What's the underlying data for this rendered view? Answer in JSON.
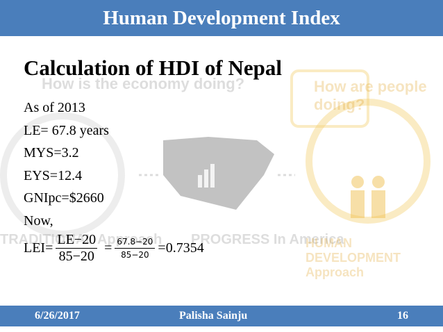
{
  "header": {
    "title": "Human Development Index"
  },
  "background": {
    "economy_question": "How is the economy doing?",
    "people_question": "How are people doing?",
    "traditional_approach": "TRADITIONAL Approach",
    "progress_in_america": "PROGRESS In America",
    "human_development_approach": "HUMAN DEVELOPMENT Approach"
  },
  "content": {
    "heading": "Calculation of HDI of Nepal",
    "lines": [
      "As of 2013",
      "LE= 67.8 years",
      "MYS=3.2",
      "EYS=12.4",
      "GNIpc=$2660",
      "Now,"
    ],
    "formula": {
      "label": "LEI=",
      "fraction1": {
        "numerator": "LE−20",
        "denominator": "85−20"
      },
      "equals": "=",
      "fraction2": {
        "numerator": "67.8−20",
        "denominator": "85−20"
      },
      "result": "=0.7354"
    }
  },
  "footer": {
    "date": "6/26/2017",
    "author": "Palisha Sainju",
    "page": "16"
  }
}
